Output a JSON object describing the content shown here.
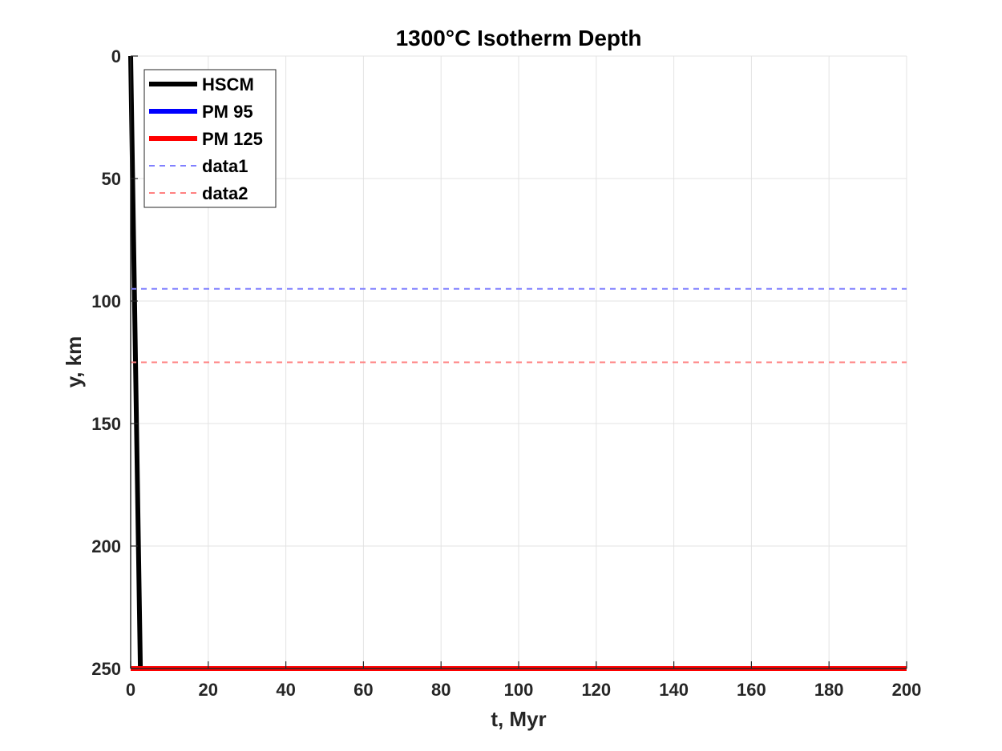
{
  "chart_data": {
    "type": "line",
    "title": "1300°C Isotherm Depth",
    "xlabel": "t, Myr",
    "ylabel": "y, km",
    "xlim": [
      0,
      200
    ],
    "ylim": [
      0,
      250
    ],
    "y_reversed": true,
    "grid": true,
    "x_ticks": [
      0,
      20,
      40,
      60,
      80,
      100,
      120,
      140,
      160,
      180,
      200
    ],
    "y_ticks": [
      0,
      50,
      100,
      150,
      200,
      250
    ],
    "legend_position": "top-left",
    "series": [
      {
        "name": "HSCM",
        "color": "#000000",
        "style": "solid",
        "width": 6,
        "x": [
          0,
          0.5,
          1,
          1.5,
          2,
          2.5
        ],
        "y": [
          0,
          50,
          100,
          150,
          200,
          250
        ]
      },
      {
        "name": "PM 95",
        "color": "#0000ff",
        "style": "solid",
        "width": 6,
        "x": [
          0,
          200
        ],
        "y": [
          250,
          250
        ]
      },
      {
        "name": "PM 125",
        "color": "#ff0000",
        "style": "solid",
        "width": 6,
        "x": [
          0,
          200
        ],
        "y": [
          250,
          250
        ]
      },
      {
        "name": "data1",
        "color": "#8080ff",
        "style": "dashed",
        "width": 2,
        "x": [
          0,
          200
        ],
        "y": [
          95,
          95
        ]
      },
      {
        "name": "data2",
        "color": "#ff8080",
        "style": "dashed",
        "width": 2,
        "x": [
          0,
          200
        ],
        "y": [
          125,
          125
        ]
      }
    ]
  }
}
